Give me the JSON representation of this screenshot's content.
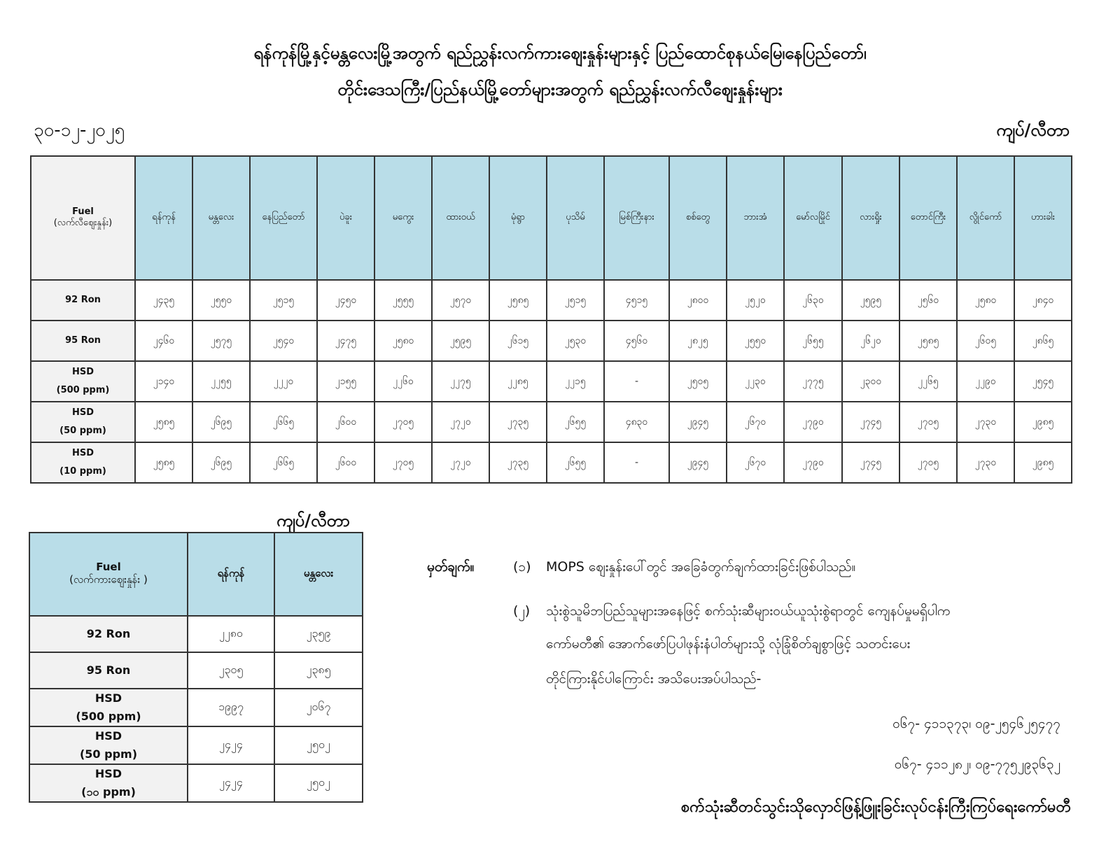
{
  "header": {
    "title_line1": "ရန်ကုန်မြို့နှင့်မန္တလေးမြို့အတွက် ရည်ညွှန်းလက်ကားဈေးနှုန်းများနှင့် ပြည်ထောင်စုနယ်မြေ၊နေပြည်တော်၊",
    "title_line2": "တိုင်းဒေသကြီး/ပြည်နယ်မြို့တော်များအတွက် ရည်ညွှန်းလက်လီဈေးနှုန်းများ",
    "date": "၃၀-၁၂-၂၀၂၅",
    "unit": "ကျပ်/လီတာ"
  },
  "retail_table": {
    "fuel_header": "Fuel",
    "fuel_subheader": "(လက်လီဈေးနှုန်း)",
    "cities": [
      "ရန်ကုန်",
      "မန္တလေး",
      "နေပြည်တော်",
      "ပဲခူး",
      "မကွေး",
      "ထားဝယ်",
      "မုံရွာ",
      "ပုသိမ်",
      "မြစ်ကြီးနား",
      "စစ်တွေ",
      "ဘားအံ",
      "မော်လမြိုင်",
      "လားရှိုး",
      "တောင်ကြီး",
      "လွိုင်ကော်",
      "ဟားခါး"
    ],
    "rows": [
      {
        "fuel": "92 Ron",
        "sub": "",
        "values": [
          "၂၄၃၅",
          "၂၅၅၀",
          "၂၅၁၅",
          "၂၄၅၀",
          "၂၅၅၅",
          "၂၅၇၀",
          "၂၅၈၅",
          "၂၅၁၅",
          "၄၅၁၅",
          "၂၈၀၀",
          "၂၅၂၀",
          "၂၆၃၀",
          "၂၅၉၅",
          "၂၅၆၀",
          "၂၅၈၀",
          "၂၈၄၀"
        ]
      },
      {
        "fuel": "95 Ron",
        "sub": "",
        "values": [
          "၂၄၆၀",
          "၂၅၇၅",
          "၂၅၄၀",
          "၂၄၇၅",
          "၂၅၈၀",
          "၂၅၉၅",
          "၂၆၁၅",
          "၂၅၃၀",
          "၄၅၆၀",
          "၂၈၂၅",
          "၂၅၅၀",
          "၂၆၅၅",
          "၂၆၂၀",
          "၂၅၈၅",
          "၂၆၀၅",
          "၂၈၆၅"
        ]
      },
      {
        "fuel": "HSD",
        "sub": "(500 ppm)",
        "values": [
          "၂၁၄၀",
          "၂၂၅၅",
          "၂၂၂၀",
          "၂၁၅၅",
          "၂၂၆၀",
          "၂၂၇၅",
          "၂၂၈၅",
          "၂၂၁၅",
          "-",
          "၂၅၀၅",
          "၂၂၃၀",
          "၂၇၇၅",
          "၂၃၀၀",
          "၂၂၆၅",
          "၂၂၉၀",
          "၂၅၄၅"
        ]
      },
      {
        "fuel": "HSD",
        "sub": "(50 ppm)",
        "values": [
          "၂၅၈၅",
          "၂၆၉၅",
          "၂၆၆၅",
          "၂၆၀၀",
          "၂၇၀၅",
          "၂၇၂၀",
          "၂၇၃၅",
          "၂၆၅၅",
          "၄၈၃၀",
          "၂၉၄၅",
          "၂၆၇၀",
          "၂၇၉၀",
          "၂၇၄၅",
          "၂၇၀၅",
          "၂၇၃၀",
          "၂၉၈၅"
        ]
      },
      {
        "fuel": "HSD",
        "sub": "(10 ppm)",
        "values": [
          "၂၅၈၅",
          "၂၆၉၅",
          "၂၆၆၅",
          "၂၆၀၀",
          "၂၇၀၅",
          "၂၇၂၀",
          "၂၇၃၅",
          "၂၆၅၅",
          "-",
          "၂၉၄၅",
          "၂၆၇၀",
          "၂၇၉၀",
          "၂၇၄၅",
          "၂၇၀၅",
          "၂၇၃၀",
          "၂၉၈၅"
        ]
      }
    ]
  },
  "wholesale_table": {
    "unit": "ကျပ်/လီတာ",
    "fuel_header": "Fuel",
    "fuel_subheader": "(လက်ကားဈေးနှုန်း )",
    "cities": [
      "ရန်ကုန်",
      "မန္တလေး"
    ],
    "rows": [
      {
        "fuel": "92 Ron",
        "sub": "",
        "values": [
          "၂၂၈၀",
          "၂၃၅၉"
        ]
      },
      {
        "fuel": "95 Ron",
        "sub": "",
        "values": [
          "၂၃၀၅",
          "၂၃၈၅"
        ]
      },
      {
        "fuel": "HSD",
        "sub": "(500 ppm)",
        "values": [
          "၁၉၉၇",
          "၂၀၆၇"
        ]
      },
      {
        "fuel": "HSD",
        "sub": "(50 ppm)",
        "values": [
          "၂၄၂၄",
          "၂၅၀၂"
        ]
      },
      {
        "fuel": "HSD",
        "sub": "(၁၀ ppm)",
        "values": [
          "၂၄၂၄",
          "၂၅၀၂"
        ]
      }
    ]
  },
  "notes": {
    "label": "မှတ်ချက်။",
    "n1_num": "(၁)",
    "n1_text": "MOPS ဈေးနှုန်းပေါ်တွင် အခြေခံတွက်ချက်ထားခြင်းဖြစ်ပါသည်။",
    "n2_num": "(၂)",
    "n2_line1": "သုံးစွဲသူမိဘပြည်သူများအနေဖြင့် စက်သုံးဆီများဝယ်ယူသုံးစွဲရာတွင် ကျေနပ်မှုမရှိပါက",
    "n2_line2": "ကော်မတီ၏ အောက်ဖော်ပြပါဖုန်းနံပါတ်များသို့ လုံခြုံစိတ်ချစွာဖြင့် သတင်းပေး",
    "n2_line3": "တိုင်ကြားနိုင်ပါကြောင်း အသိပေးအပ်ပါသည်-",
    "phone1": "၀၆၇- ၄၁၁၃၇၃၊ ၀၉-၂၅၄၆၂၅၄၇၇",
    "phone2": "၀၆၇- ၄၁၁၂၈၂၊ ၀၉-၇၇၅၂၉၃၆၃၂"
  },
  "footer": "စက်သုံးဆီတင်သွင်းသိုလှောင်ဖြန့်ဖြူးခြင်းလုပ်ငန်းကြီးကြပ်ရေးကော်မတီ",
  "colors": {
    "header_fill": "#b9dde8",
    "label_fill": "#f2f2f2"
  }
}
